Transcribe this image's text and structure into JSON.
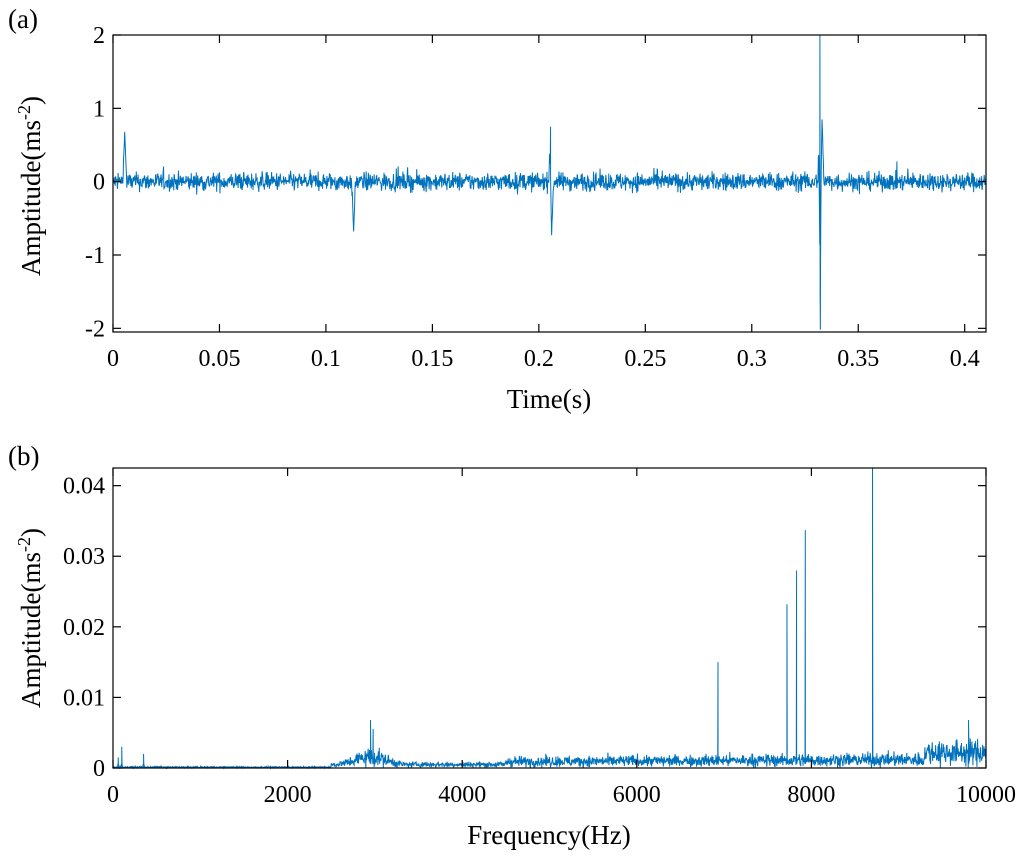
{
  "colors": {
    "series": "#0072BD",
    "axes": "#000000",
    "background": "#ffffff"
  },
  "chart_data": [
    {
      "panel_label": "(a)",
      "type": "line",
      "xlabel": "Time(s)",
      "ylabel_main": "Amptitude(ms",
      "ylabel_sup": "-2",
      "ylabel_close": ")",
      "xlim": [
        0,
        0.41
      ],
      "ylim": [
        -2.05,
        2.0
      ],
      "xticks": [
        0,
        0.05,
        0.1,
        0.15,
        0.2,
        0.25,
        0.3,
        0.35,
        0.4
      ],
      "xtick_labels": [
        "0",
        "0.05",
        "0.1",
        "0.15",
        "0.2",
        "0.25",
        "0.3",
        "0.35",
        "0.4"
      ],
      "yticks": [
        -2,
        -1,
        0,
        1,
        2
      ],
      "ytick_labels": [
        "-2",
        "-1",
        "0",
        "1",
        "2"
      ],
      "grid": false,
      "series": [
        {
          "values_note_free": true,
          "noise_amplitude": 0.22,
          "x": [
            0,
            0.0055,
            0.113,
            0.2055,
            0.206,
            0.332,
            0.3322,
            0.333,
            0.41
          ],
          "y": [
            0,
            0.68,
            -0.68,
            0.75,
            -0.73,
            2.0,
            -2.02,
            0.85,
            0
          ]
        }
      ]
    },
    {
      "panel_label": "(b)",
      "type": "line",
      "xlabel": "Frequency(Hz)",
      "ylabel_main": "Amptitude(ms",
      "ylabel_sup": "-2",
      "ylabel_close": ")",
      "xlim": [
        0,
        10000
      ],
      "ylim": [
        0,
        0.0425
      ],
      "xticks": [
        0,
        2000,
        4000,
        6000,
        8000,
        10000
      ],
      "xtick_labels": [
        "0",
        "2000",
        "4000",
        "6000",
        "8000",
        "10000"
      ],
      "yticks": [
        0,
        0.01,
        0.02,
        0.03,
        0.04
      ],
      "ytick_labels": [
        "0",
        "0.01",
        "0.02",
        "0.03",
        "0.04"
      ],
      "grid": false,
      "series": [
        {
          "x": [
            60,
            100,
            350,
            2950,
            2980,
            6930,
            7720,
            7830,
            7930,
            8700,
            9800
          ],
          "y": [
            0.0015,
            0.003,
            0.002,
            0.0068,
            0.0055,
            0.015,
            0.0232,
            0.028,
            0.0337,
            0.0425,
            0.0068
          ]
        }
      ]
    }
  ]
}
